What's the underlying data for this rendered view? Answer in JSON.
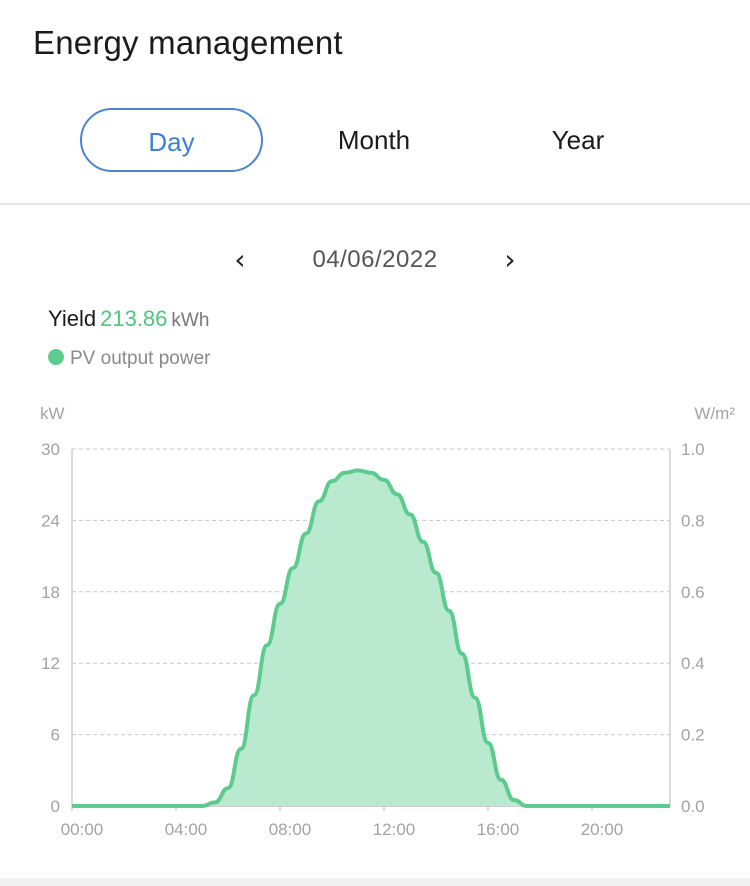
{
  "header": {
    "title": "Energy management"
  },
  "tabs": [
    {
      "label": "Day",
      "active": true
    },
    {
      "label": "Month",
      "active": false
    },
    {
      "label": "Year",
      "active": false
    }
  ],
  "date_nav": {
    "prev_icon": "chevron-left-icon",
    "next_icon": "chevron-right-icon",
    "date": "04/06/2022"
  },
  "summary": {
    "label": "Yield",
    "value": "213.86",
    "unit": "kWh"
  },
  "legend": {
    "label": "PV output power",
    "color": "#5ecb8e"
  },
  "chart_data": {
    "type": "area",
    "left_unit": "kW",
    "right_unit": "W/m²",
    "left_ticks": [
      "30",
      "24",
      "18",
      "12",
      "6",
      "0"
    ],
    "right_ticks": [
      "1.0",
      "0.8",
      "0.6",
      "0.4",
      "0.2",
      "0.0"
    ],
    "x_ticks": [
      "00:00",
      "04:00",
      "08:00",
      "12:00",
      "16:00",
      "20:00"
    ],
    "xlim": [
      0,
      23
    ],
    "ylim": [
      0,
      30
    ],
    "y2lim": [
      0,
      1.0
    ],
    "grid": true,
    "series": [
      {
        "name": "PV output power",
        "color": "#5ecb8e",
        "x": [
          0,
          5,
          5.5,
          6,
          6.5,
          7,
          7.5,
          8,
          8.5,
          9,
          9.5,
          10,
          10.5,
          11,
          11.5,
          12,
          12.5,
          13,
          13.5,
          14,
          14.5,
          15,
          15.5,
          16,
          16.5,
          17,
          17.5,
          18,
          23
        ],
        "y": [
          0,
          0,
          0.3,
          1.5,
          4.8,
          9.3,
          13.5,
          17.0,
          20.0,
          22.9,
          25.6,
          27.3,
          28.0,
          28.2,
          28.0,
          27.4,
          26.2,
          24.5,
          22.2,
          19.6,
          16.4,
          12.8,
          9.1,
          5.3,
          2.2,
          0.5,
          0,
          0,
          0
        ]
      }
    ]
  }
}
